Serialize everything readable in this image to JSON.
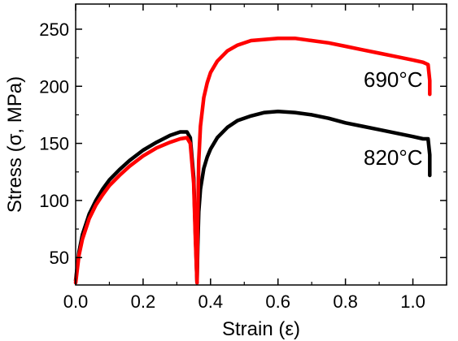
{
  "chart_data": {
    "type": "line",
    "xlabel": "Strain (ε)",
    "ylabel": "Stress (σ, MPa)",
    "xlim": [
      0.0,
      1.1
    ],
    "ylim": [
      26,
      272
    ],
    "xticks": [
      0.0,
      0.2,
      0.4,
      0.6,
      0.8,
      1.0
    ],
    "xtick_labels": [
      "0.0",
      "0.2",
      "0.4",
      "0.6",
      "0.8",
      "1.0"
    ],
    "yticks": [
      50,
      100,
      150,
      200,
      250
    ],
    "ytick_labels": [
      "50",
      "100",
      "150",
      "200",
      "250"
    ],
    "grid": false,
    "legend": "none",
    "series": [
      {
        "name": "820°C",
        "label": "820°C",
        "color": "#000000",
        "x": [
          0.0,
          0.01,
          0.02,
          0.04,
          0.06,
          0.08,
          0.1,
          0.13,
          0.16,
          0.2,
          0.24,
          0.28,
          0.31,
          0.33,
          0.34,
          0.35,
          0.355,
          0.36,
          0.362,
          0.365,
          0.37,
          0.38,
          0.39,
          0.4,
          0.42,
          0.45,
          0.48,
          0.52,
          0.56,
          0.6,
          0.65,
          0.7,
          0.75,
          0.8,
          0.85,
          0.9,
          0.95,
          1.0,
          1.03,
          1.045,
          1.05,
          1.05
        ],
        "y": [
          30,
          55,
          70,
          88,
          100,
          110,
          118,
          127,
          135,
          144,
          151,
          157,
          160,
          160,
          155,
          120,
          70,
          28,
          60,
          90,
          110,
          128,
          138,
          145,
          155,
          164,
          170,
          174,
          177,
          178,
          177,
          175,
          172,
          168,
          165,
          162,
          159,
          156,
          154,
          154,
          140,
          122
        ]
      },
      {
        "name": "690°C",
        "label": "690°C",
        "color": "#ff0000",
        "x": [
          0.0,
          0.01,
          0.02,
          0.04,
          0.06,
          0.08,
          0.1,
          0.13,
          0.16,
          0.2,
          0.24,
          0.28,
          0.31,
          0.33,
          0.34,
          0.35,
          0.355,
          0.36,
          0.362,
          0.365,
          0.37,
          0.38,
          0.39,
          0.4,
          0.42,
          0.45,
          0.48,
          0.52,
          0.56,
          0.6,
          0.65,
          0.7,
          0.75,
          0.8,
          0.85,
          0.9,
          0.95,
          1.0,
          1.03,
          1.045,
          1.05,
          1.05
        ],
        "y": [
          28,
          52,
          66,
          84,
          96,
          105,
          113,
          122,
          130,
          139,
          146,
          151,
          154,
          155,
          150,
          115,
          66,
          28,
          85,
          135,
          165,
          190,
          203,
          212,
          222,
          231,
          236,
          240,
          241,
          242,
          242,
          240,
          238,
          235,
          232,
          229,
          226,
          223,
          221,
          219,
          205,
          193
        ]
      }
    ]
  }
}
